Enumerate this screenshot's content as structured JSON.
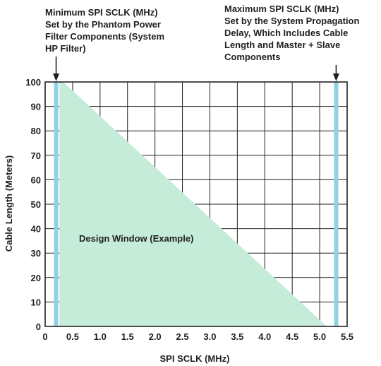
{
  "chart_data": {
    "type": "area",
    "xlabel": "SPI SCLK (MHz)",
    "ylabel": "Cable Length  (Meters)",
    "xlim": [
      0,
      5.5
    ],
    "ylim": [
      0,
      100
    ],
    "x_ticks": [
      "0",
      "0.5",
      "1.0",
      "1.5",
      "2.0",
      "2.5",
      "3.0",
      "3.5",
      "4.0",
      "4.5",
      "5.0",
      "5.5"
    ],
    "y_ticks": [
      "0",
      "10",
      "20",
      "30",
      "40",
      "50",
      "60",
      "70",
      "80",
      "90",
      "100"
    ],
    "grid": true,
    "design_window": {
      "label": "Design Window (Example)",
      "color": "#c5ecd9",
      "x": [
        0.26,
        0.33,
        5.13,
        0.26
      ],
      "y": [
        100,
        100,
        0,
        0
      ]
    },
    "min_line": {
      "x": 0.2,
      "color": "#8fd2e3",
      "label_lines": [
        "Minimum SPI SCLK (MHz)",
        "Set by the Phantom Power",
        "Filter Components (System",
        "HP Filter)"
      ]
    },
    "max_line": {
      "x": 5.3,
      "color": "#8fd2e3",
      "label_lines": [
        "Maximum SPI SCLK (MHz)",
        "Set by the System Propagation",
        "Delay, Which Includes Cable",
        "Length and Master + Slave",
        "Components"
      ]
    }
  }
}
